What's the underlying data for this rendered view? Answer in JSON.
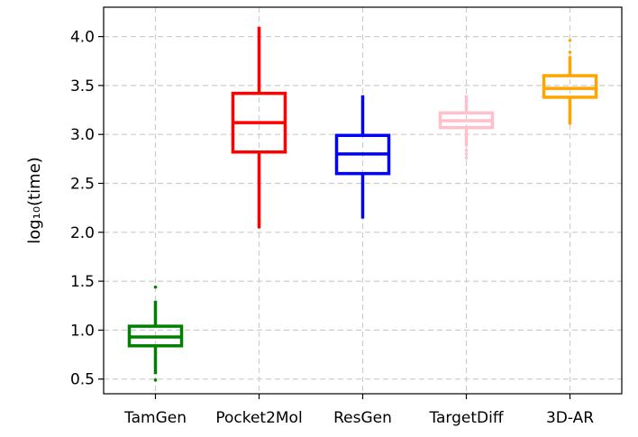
{
  "chart_data": {
    "type": "box",
    "ylabel": "log₁₀(time)",
    "ylim": [
      0.35,
      4.3
    ],
    "yticks": [
      0.5,
      1.0,
      1.5,
      2.0,
      2.5,
      3.0,
      3.5,
      4.0
    ],
    "ytick_labels": [
      "0.5",
      "1.0",
      "1.5",
      "2.0",
      "2.5",
      "3.0",
      "3.5",
      "4.0"
    ],
    "grid": true,
    "categories": [
      "TamGen",
      "Pocket2Mol",
      "ResGen",
      "TargetDiff",
      "3D-AR"
    ],
    "boxes": [
      {
        "name": "TamGen",
        "color": "#008000",
        "whisker_low": 0.55,
        "q1": 0.84,
        "median": 0.93,
        "q3": 1.04,
        "whisker_high": 1.3,
        "outliers": [
          0.49,
          1.44
        ]
      },
      {
        "name": "Pocket2Mol",
        "color": "#ff0000",
        "whisker_low": 2.04,
        "q1": 2.82,
        "median": 3.12,
        "q3": 3.42,
        "whisker_high": 4.1,
        "outliers": []
      },
      {
        "name": "ResGen",
        "color": "#0000ff",
        "whisker_low": 2.14,
        "q1": 2.6,
        "median": 2.8,
        "q3": 2.99,
        "whisker_high": 3.4,
        "outliers": []
      },
      {
        "name": "TargetDiff",
        "color": "#ffc0cb",
        "whisker_low": 2.88,
        "q1": 3.07,
        "median": 3.14,
        "q3": 3.22,
        "whisker_high": 3.4,
        "outliers": [
          2.76,
          2.8,
          2.84
        ]
      },
      {
        "name": "3D-AR",
        "color": "#ffa500",
        "whisker_low": 3.1,
        "q1": 3.38,
        "median": 3.47,
        "q3": 3.6,
        "whisker_high": 3.8,
        "outliers": [
          3.84,
          3.96
        ]
      }
    ]
  }
}
